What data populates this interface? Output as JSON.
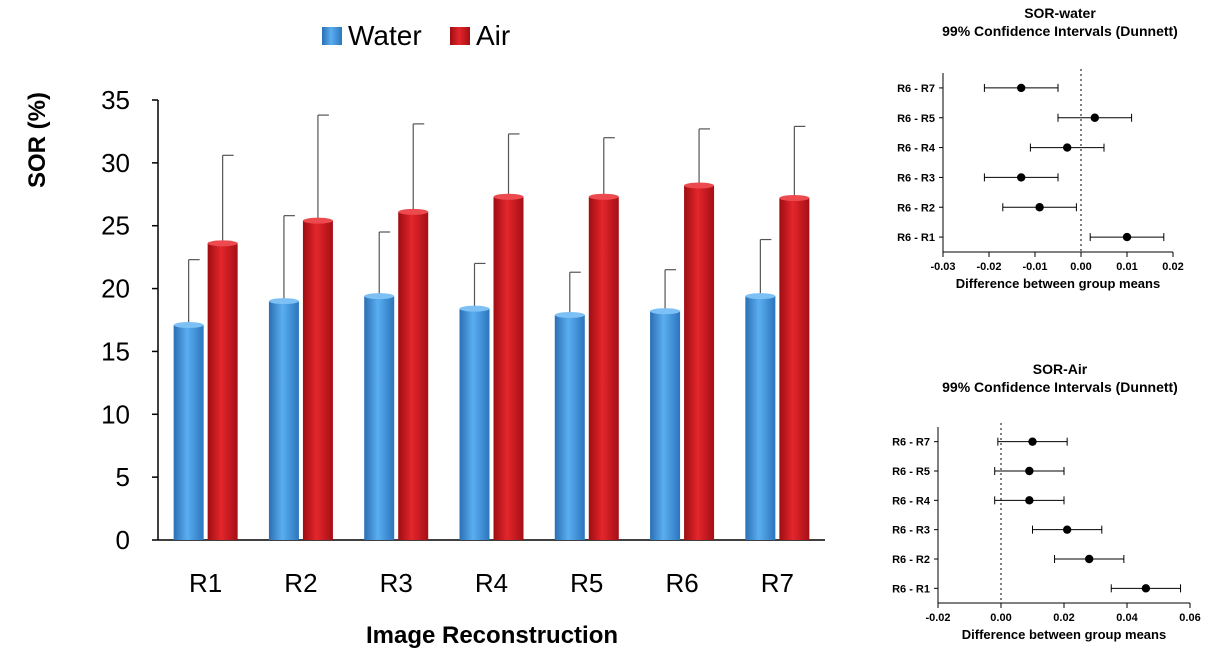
{
  "chart_data": [
    {
      "type": "bar",
      "title": "",
      "xlabel": "Image Reconstruction",
      "ylabel": "SOR (%)",
      "ylim": [
        0,
        35
      ],
      "yticks": [
        0,
        5,
        10,
        15,
        20,
        25,
        30,
        35
      ],
      "categories": [
        "R1",
        "R2",
        "R3",
        "R4",
        "R5",
        "R6",
        "R7"
      ],
      "legend_position": "top-center",
      "grid": false,
      "series": [
        {
          "name": "Water",
          "color": "#3d8fd6",
          "values": [
            17.1,
            19.0,
            19.4,
            18.4,
            17.9,
            18.2,
            19.4
          ],
          "error_upper": [
            22.3,
            25.8,
            24.5,
            22.0,
            21.3,
            21.5,
            23.9
          ]
        },
        {
          "name": "Air",
          "color": "#c8161d",
          "values": [
            23.6,
            25.4,
            26.1,
            27.3,
            27.3,
            28.2,
            27.2
          ],
          "error_upper": [
            30.6,
            33.8,
            33.1,
            32.3,
            32.0,
            32.7,
            32.9
          ]
        }
      ]
    },
    {
      "type": "scatter",
      "title": "SOR-water",
      "subtitle": "99% Confidence Intervals (Dunnett)",
      "xlabel": "Difference between group means",
      "ylabel": "",
      "xlim": [
        -0.03,
        0.02
      ],
      "xticks": [
        -0.03,
        -0.02,
        -0.01,
        0.0,
        0.01,
        0.02
      ],
      "xtick_labels": [
        "-0.03",
        "-0.02",
        "-0.01",
        "0.00",
        "0.01",
        "0.02"
      ],
      "reference_line": 0,
      "grid": false,
      "rows": [
        {
          "label": "R6 - R7",
          "mean": -0.013,
          "lower": -0.021,
          "upper": -0.005
        },
        {
          "label": "R6 - R5",
          "mean": 0.003,
          "lower": -0.005,
          "upper": 0.011
        },
        {
          "label": "R6 - R4",
          "mean": -0.003,
          "lower": -0.011,
          "upper": 0.005
        },
        {
          "label": "R6 - R3",
          "mean": -0.013,
          "lower": -0.021,
          "upper": -0.005
        },
        {
          "label": "R6 - R2",
          "mean": -0.009,
          "lower": -0.017,
          "upper": -0.001
        },
        {
          "label": "R6 - R1",
          "mean": 0.01,
          "lower": 0.002,
          "upper": 0.018
        }
      ]
    },
    {
      "type": "scatter",
      "title": "SOR-Air",
      "subtitle": "99% Confidence Intervals (Dunnett)",
      "xlabel": "Difference between group means",
      "ylabel": "",
      "xlim": [
        -0.02,
        0.06
      ],
      "xticks": [
        -0.02,
        0.0,
        0.02,
        0.04,
        0.06
      ],
      "xtick_labels": [
        "-0.02",
        "0.00",
        "0.02",
        "0.04",
        "0.06"
      ],
      "reference_line": 0,
      "grid": false,
      "rows": [
        {
          "label": "R6 - R7",
          "mean": 0.01,
          "lower": -0.001,
          "upper": 0.021
        },
        {
          "label": "R6 - R5",
          "mean": 0.009,
          "lower": -0.002,
          "upper": 0.02
        },
        {
          "label": "R6 - R4",
          "mean": 0.009,
          "lower": -0.002,
          "upper": 0.02
        },
        {
          "label": "R6 - R3",
          "mean": 0.021,
          "lower": 0.01,
          "upper": 0.032
        },
        {
          "label": "R6 - R2",
          "mean": 0.028,
          "lower": 0.017,
          "upper": 0.039
        },
        {
          "label": "R6 - R1",
          "mean": 0.046,
          "lower": 0.035,
          "upper": 0.057
        }
      ]
    }
  ]
}
